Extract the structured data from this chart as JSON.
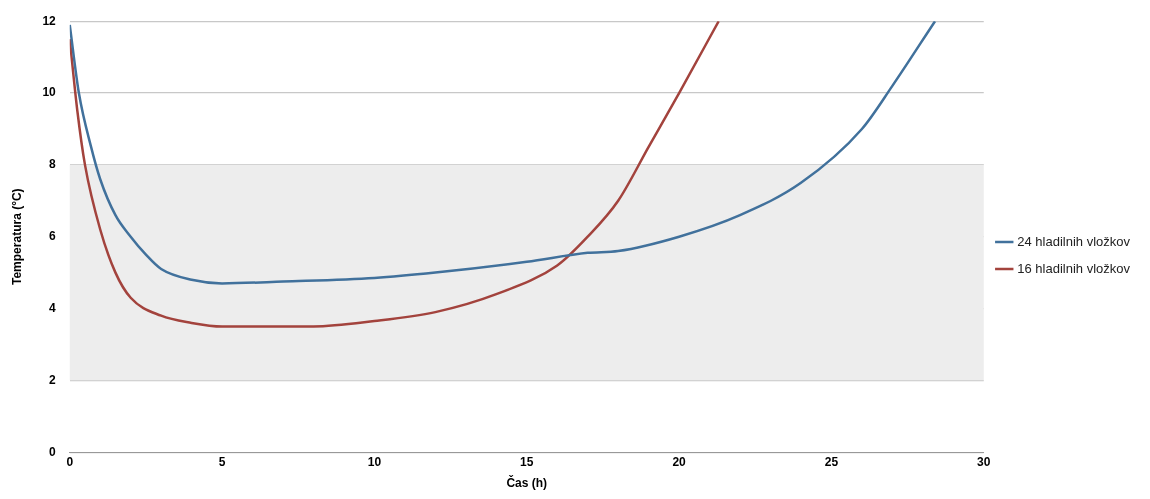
{
  "chart_data": {
    "type": "line",
    "xlabel": "Čas (h)",
    "ylabel": "Temperatura (°C)",
    "xlim": [
      0,
      30
    ],
    "xticks": [
      0,
      5,
      10,
      15,
      20,
      25,
      30
    ],
    "ylim": [
      0,
      12
    ],
    "yticks": [
      0,
      2,
      4,
      6,
      8,
      10,
      12
    ],
    "grid": "y",
    "legend": "right",
    "marker": "none",
    "line_style": "solid",
    "bands": [
      {
        "axis": "y",
        "from": 2,
        "to": 8,
        "color": "#ededed"
      }
    ],
    "series": [
      {
        "name": "24 hladilnih vložkov",
        "color": "#41719c",
        "x": [
          0,
          0.3,
          0.7,
          1,
          1.5,
          2,
          2.5,
          3,
          4,
          5,
          7,
          10,
          12,
          15,
          17,
          18,
          20,
          22,
          24,
          26,
          27,
          28.4
        ],
        "values": [
          11.9,
          10,
          8.5,
          7.6,
          6.6,
          6,
          5.5,
          5.1,
          4.8,
          4.7,
          4.75,
          4.85,
          5,
          5.3,
          5.55,
          5.6,
          6,
          6.6,
          7.5,
          9,
          10.2,
          12
        ]
      },
      {
        "name": "16 hladilnih vložkov",
        "color": "#a3433d",
        "x": [
          0,
          0.25,
          0.5,
          1,
          1.5,
          2,
          3,
          4,
          5,
          8,
          10,
          12,
          14,
          16,
          17,
          18,
          19,
          20,
          21.3
        ],
        "values": [
          11.5,
          9.5,
          8,
          6.2,
          5,
          4.3,
          3.8,
          3.6,
          3.5,
          3.5,
          3.65,
          3.9,
          4.4,
          5.2,
          6,
          7,
          8.5,
          10,
          12
        ]
      }
    ]
  }
}
